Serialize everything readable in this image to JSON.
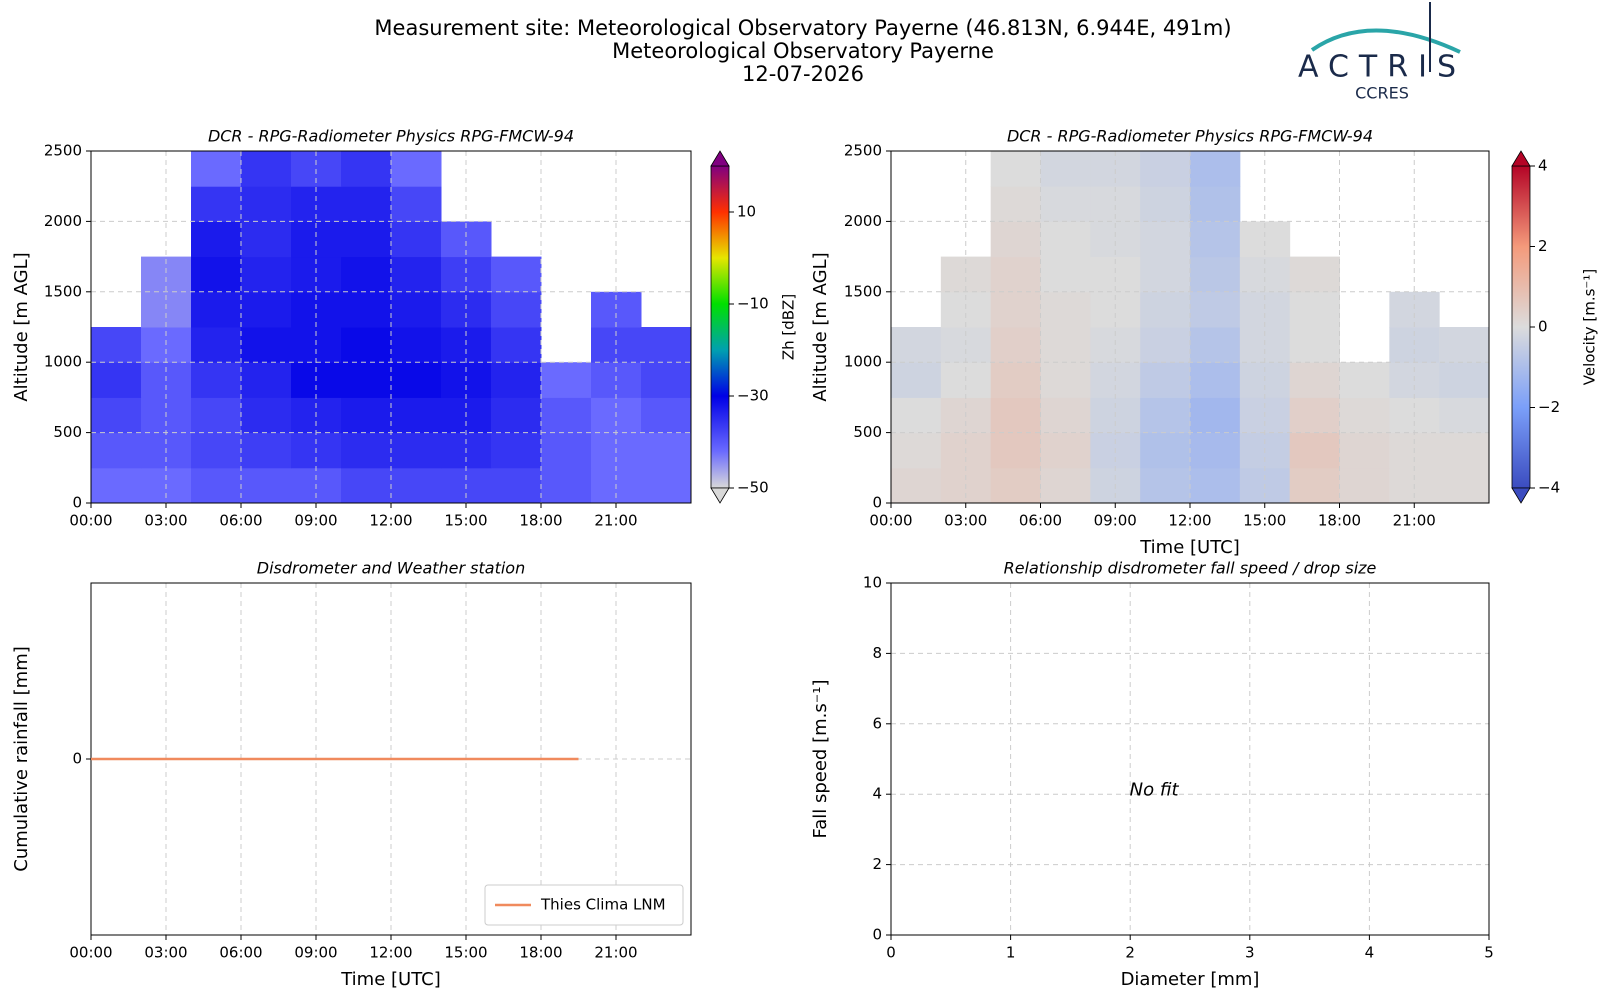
{
  "header": {
    "title_lines": [
      "Measurement site: Meteorological Observatory Payerne (46.813N, 6.944E, 491m)",
      "Meteorological Observatory Payerne",
      "12-07-2026"
    ]
  },
  "logo": {
    "name": "ACTRIS",
    "subtitle": "CCRES"
  },
  "chart_data": [
    {
      "type": "heatmap",
      "title": "DCR - RPG-Radiometer Physics RPG-FMCW-94",
      "ylabel": "Altitude [m AGL]",
      "xlim": [
        0,
        24
      ],
      "xticks": [
        {
          "value": 0,
          "label": "00:00"
        },
        {
          "value": 3,
          "label": "03:00"
        },
        {
          "value": 6,
          "label": "06:00"
        },
        {
          "value": 9,
          "label": "09:00"
        },
        {
          "value": 12,
          "label": "12:00"
        },
        {
          "value": 15,
          "label": "15:00"
        },
        {
          "value": 18,
          "label": "18:00"
        },
        {
          "value": 21,
          "label": "21:00"
        }
      ],
      "ylim": [
        0,
        2500
      ],
      "yticks": [
        0,
        500,
        1000,
        1500,
        2000,
        2500
      ],
      "grid": true,
      "x_bins": [
        0,
        2,
        4,
        6,
        8,
        10,
        12,
        14,
        16,
        18,
        20,
        22,
        24
      ],
      "y_bins": [
        0,
        250,
        500,
        750,
        1000,
        1250,
        1500,
        1750,
        2000,
        2250,
        2500
      ],
      "z": [
        [
          -42,
          -42,
          -40,
          -40,
          -40,
          -38,
          -38,
          -38,
          -38,
          -40,
          -42,
          -42
        ],
        [
          -40,
          -40,
          -38,
          -37,
          -36,
          -35,
          -35,
          -35,
          -36,
          -40,
          -42,
          -42
        ],
        [
          -38,
          -40,
          -38,
          -35,
          -34,
          -33,
          -33,
          -33,
          -35,
          -40,
          -42,
          -40
        ],
        [
          -36,
          -40,
          -36,
          -34,
          -31,
          -31,
          -31,
          -32,
          -34,
          -42,
          -40,
          -38
        ],
        [
          -38,
          -42,
          -34,
          -32,
          -32,
          -31,
          -32,
          -33,
          -36,
          null,
          -38,
          -38
        ],
        [
          null,
          -44,
          -33,
          -33,
          -32,
          -32,
          -33,
          -35,
          -38,
          null,
          -40,
          null
        ],
        [
          null,
          -44,
          -32,
          -34,
          -33,
          -32,
          -34,
          -37,
          -40,
          null,
          null,
          null
        ],
        [
          null,
          null,
          -33,
          -35,
          -33,
          -33,
          -36,
          -40,
          null,
          null,
          null,
          null
        ],
        [
          null,
          null,
          -36,
          -35,
          -34,
          -34,
          -38,
          null,
          null,
          null,
          null,
          null
        ],
        [
          null,
          null,
          -42,
          -36,
          -38,
          -36,
          -42,
          null,
          null,
          null,
          null,
          null
        ]
      ],
      "colorbar": {
        "label": "Zh [dBZ]",
        "clim": [
          -50,
          20
        ],
        "extend": "both",
        "ticks": [
          {
            "value": -50,
            "label": "−50"
          },
          {
            "value": -30,
            "label": "−30"
          },
          {
            "value": -10,
            "label": "−10"
          },
          10
        ],
        "colorscale": [
          [
            -50,
            "#d9d9d9"
          ],
          [
            -42,
            "#6a6aff"
          ],
          [
            -30,
            "#0000e6"
          ],
          [
            -20,
            "#00a0b0"
          ],
          [
            -10,
            "#00e000"
          ],
          [
            0,
            "#e6e600"
          ],
          [
            10,
            "#ff3000"
          ],
          [
            20,
            "#800080"
          ]
        ]
      }
    },
    {
      "type": "heatmap",
      "title": "DCR - RPG-Radiometer Physics RPG-FMCW-94",
      "ylabel": "Altitude [m AGL]",
      "xlabel": "Time [UTC]",
      "xlim": [
        0,
        24
      ],
      "xticks": [
        {
          "value": 0,
          "label": "00:00"
        },
        {
          "value": 3,
          "label": "03:00"
        },
        {
          "value": 6,
          "label": "06:00"
        },
        {
          "value": 9,
          "label": "09:00"
        },
        {
          "value": 12,
          "label": "12:00"
        },
        {
          "value": 15,
          "label": "15:00"
        },
        {
          "value": 18,
          "label": "18:00"
        },
        {
          "value": 21,
          "label": "21:00"
        }
      ],
      "ylim": [
        0,
        2500
      ],
      "yticks": [
        0,
        500,
        1000,
        1500,
        2000,
        2500
      ],
      "grid": true,
      "x_bins": [
        0,
        2,
        4,
        6,
        8,
        10,
        12,
        14,
        16,
        18,
        20,
        22,
        24
      ],
      "y_bins": [
        0,
        250,
        500,
        750,
        1000,
        1250,
        1500,
        1750,
        2000,
        2250,
        2500
      ],
      "z": [
        [
          0.2,
          0.3,
          0.5,
          0.2,
          -0.3,
          -0.8,
          -1.0,
          -0.6,
          0.5,
          0.2,
          0.1,
          0.1
        ],
        [
          0.1,
          0.3,
          0.6,
          0.3,
          -0.4,
          -0.9,
          -1.1,
          -0.5,
          0.6,
          0.2,
          0.1,
          0.1
        ],
        [
          0.0,
          0.2,
          0.6,
          0.2,
          -0.3,
          -0.8,
          -1.2,
          -0.4,
          0.4,
          0.1,
          0.0,
          -0.1
        ],
        [
          -0.3,
          0.0,
          0.5,
          0.1,
          -0.2,
          -0.6,
          -1.0,
          -0.3,
          0.2,
          0.0,
          -0.2,
          -0.3
        ],
        [
          -0.2,
          -0.1,
          0.4,
          0.1,
          -0.1,
          -0.4,
          -0.8,
          -0.2,
          0.0,
          null,
          -0.3,
          -0.2
        ],
        [
          null,
          0.0,
          0.3,
          0.1,
          0.0,
          -0.3,
          -0.6,
          -0.2,
          0.0,
          null,
          -0.2,
          null
        ],
        [
          null,
          0.1,
          0.3,
          0.0,
          0.0,
          -0.2,
          -0.7,
          -0.1,
          0.1,
          null,
          null,
          null
        ],
        [
          null,
          null,
          0.2,
          0.0,
          -0.1,
          -0.2,
          -0.8,
          0.0,
          null,
          null,
          null,
          null
        ],
        [
          null,
          null,
          0.1,
          -0.1,
          -0.1,
          -0.3,
          -0.9,
          null,
          null,
          null,
          null,
          null
        ],
        [
          null,
          null,
          0.0,
          -0.2,
          -0.2,
          -0.4,
          -1.0,
          null,
          null,
          null,
          null,
          null
        ]
      ],
      "colorbar": {
        "label": "Velocity [m.s⁻¹]",
        "clim": [
          -4,
          4
        ],
        "extend": "both",
        "ticks": [
          {
            "value": -4,
            "label": "−4"
          },
          {
            "value": -2,
            "label": "−2"
          },
          0,
          2,
          4
        ],
        "colorscale": [
          [
            -4,
            "#3b4cc0"
          ],
          [
            -2,
            "#7b9ff9"
          ],
          [
            0,
            "#dcdcdc"
          ],
          [
            2,
            "#f49a7b"
          ],
          [
            4,
            "#b40426"
          ]
        ]
      }
    },
    {
      "type": "line",
      "title": "Disdrometer and Weather station",
      "ylabel": "Cumulative rainfall [mm]",
      "xlabel": "Time [UTC]",
      "xlim": [
        0,
        24
      ],
      "xticks": [
        {
          "value": 0,
          "label": "00:00"
        },
        {
          "value": 3,
          "label": "03:00"
        },
        {
          "value": 6,
          "label": "06:00"
        },
        {
          "value": 9,
          "label": "09:00"
        },
        {
          "value": 12,
          "label": "12:00"
        },
        {
          "value": 15,
          "label": "15:00"
        },
        {
          "value": 18,
          "label": "18:00"
        },
        {
          "value": 21,
          "label": "21:00"
        }
      ],
      "ylim": [
        -0.055,
        0.055
      ],
      "yticks": [
        0
      ],
      "grid": true,
      "legend": "lower right",
      "x": [
        0,
        19.5
      ],
      "series": [
        {
          "name": "Thies Clima LNM",
          "color": "#f08a5d",
          "values": [
            0,
            0
          ]
        }
      ]
    },
    {
      "type": "scatter",
      "title": "Relationship disdrometer fall speed / drop size",
      "ylabel": "Fall speed [m.s⁻¹]",
      "xlabel": "Diameter [mm]",
      "xlim": [
        0,
        5
      ],
      "xticks": [
        0,
        1,
        2,
        3,
        4,
        5
      ],
      "ylim": [
        0,
        10
      ],
      "yticks": [
        0,
        2,
        4,
        6,
        8,
        10
      ],
      "grid": true,
      "annotation": "No fit"
    }
  ]
}
